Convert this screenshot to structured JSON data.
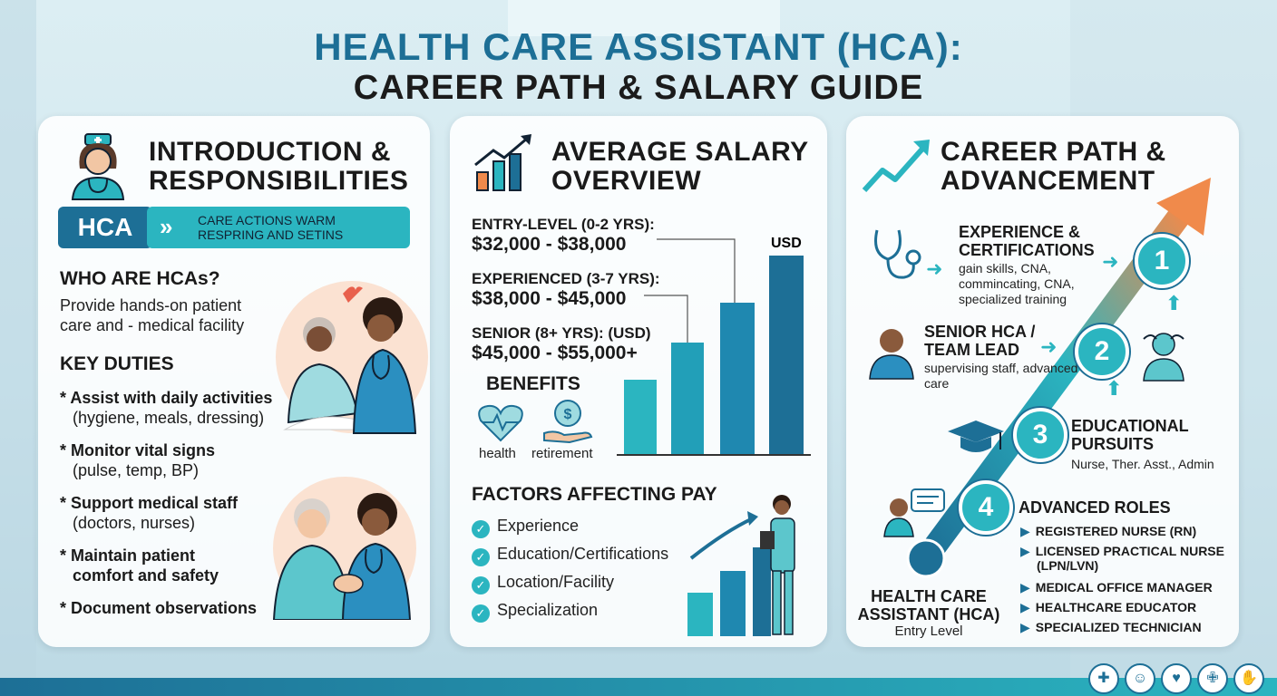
{
  "title": {
    "line1": "HEALTH CARE ASSISTANT (HCA):",
    "line2": "CAREER PATH & SALARY GUIDE"
  },
  "colors": {
    "primary": "#1d6f96",
    "accent": "#2bb5c0",
    "orange": "#f08a4b"
  },
  "intro": {
    "heading": "INTRODUCTION & RESPONSIBILITIES",
    "icon": "nurse-avatar-icon",
    "badge": "HCA",
    "banner": "CARE ACTIONS WARM RESPRING AND SETINS",
    "who_heading": "WHO ARE HCAs?",
    "who_text": "Provide hands-on patient care and - medical facility",
    "duties_heading": "KEY DUTIES",
    "duties": [
      {
        "title": "* Assist with daily activities",
        "detail": "(hygiene, meals, dressing)"
      },
      {
        "title": "* Monitor vital signs",
        "detail": "(pulse, temp, BP)"
      },
      {
        "title": "* Support medical staff",
        "detail": "(doctors, nurses)"
      },
      {
        "title": "* Maintain patient",
        "detail": "comfort and safety"
      },
      {
        "title": "* Document observations",
        "detail": ""
      }
    ]
  },
  "salary": {
    "heading": "AVERAGE SALARY OVERVIEW",
    "icon": "bar-growth-icon",
    "currency": "USD",
    "levels": [
      {
        "label": "ENTRY-LEVEL (0-2 YRS):",
        "range": "$32,000 - $38,000"
      },
      {
        "label": "EXPERIENCED (3-7 YRS):",
        "range": "$38,000 - $45,000"
      },
      {
        "label": "SENIOR (8+ YRS): (USD)",
        "range": "$45,000 - $55,000+"
      }
    ],
    "benefits_heading": "BENEFITS",
    "benefits": [
      {
        "label": "health",
        "icon": "heart-pulse-icon"
      },
      {
        "label": "retirement",
        "icon": "dollar-hand-icon"
      }
    ],
    "factors_heading": "FACTORS AFFECTING PAY",
    "factors": [
      "Experience",
      "Education/Certifications",
      "Location/Facility",
      "Specialization"
    ]
  },
  "career": {
    "heading": "CAREER PATH & ADVANCEMENT",
    "icon": "trend-arrow-icon",
    "steps": [
      {
        "num": "1",
        "title": "EXPERIENCE & CERTIFICATIONS",
        "desc": "gain skills, CNA, commincating, CNA, specialized training",
        "icon": "stethoscope-icon"
      },
      {
        "num": "2",
        "title": "SENIOR HCA / TEAM LEAD",
        "desc": "supervising staff, advanced care",
        "icon": "team-lead-icon"
      },
      {
        "num": "3",
        "title": "EDUCATIONAL PURSUITS",
        "desc": "Nurse, Ther. Asst., Admin",
        "icon": "graduation-cap-icon"
      },
      {
        "num": "4",
        "title": "ADVANCED ROLES",
        "desc": "",
        "icon": "chat-person-icon"
      }
    ],
    "roles": [
      "REGISTERED NURSE (RN)",
      "LICENSED PRACTICAL NURSE (LPN/LVN)",
      "MEDICAL OFFICE MANAGER",
      "HEALTHCARE EDUCATOR",
      "SPECIALIZED TECHNICIAN"
    ],
    "start_title": "HEALTH CARE ASSISTANT (HCA)",
    "start_sub": "Entry Level"
  },
  "footer_icons": [
    "medical-cross-icon",
    "care-hands-icon",
    "heart-pulse-icon",
    "first-aid-kit-icon",
    "caring-hand-icon"
  ]
}
